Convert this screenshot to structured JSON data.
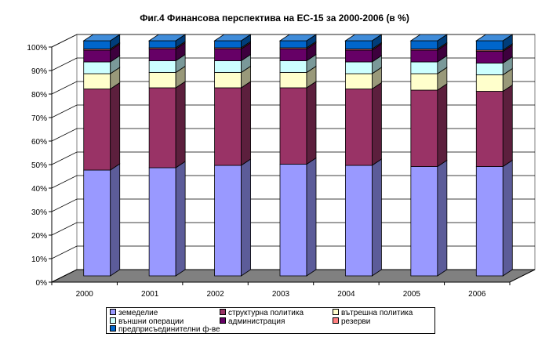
{
  "chart_data": {
    "type": "bar",
    "stacked": true,
    "percent_stacked": true,
    "style": "3d",
    "title": "Фиг.4 Финансова перспектива на ЕС-15 за 2000-2006 (в %)",
    "categories": [
      "2000",
      "2001",
      "2002",
      "2003",
      "2004",
      "2005",
      "2006"
    ],
    "y_ticks": [
      "0%",
      "10%",
      "20%",
      "30%",
      "40%",
      "50%",
      "60%",
      "70%",
      "80%",
      "90%",
      "100%"
    ],
    "ylim": [
      0,
      100
    ],
    "grid": true,
    "legend_position": "bottom",
    "series": [
      {
        "name": "земеделие",
        "color": "#9999ff",
        "values": [
          45,
          46,
          47,
          47.5,
          47,
          46.5,
          46.5
        ]
      },
      {
        "name": "структурна политика",
        "color": "#993366",
        "values": [
          34.5,
          34,
          33,
          32.5,
          32.5,
          32.5,
          32
        ]
      },
      {
        "name": "вътрешна политика",
        "color": "#ffffcc",
        "values": [
          6.5,
          6.5,
          6.5,
          6.5,
          6.5,
          7,
          7
        ]
      },
      {
        "name": "външни операции",
        "color": "#ccffff",
        "values": [
          5,
          5,
          5,
          5,
          5,
          5,
          5
        ]
      },
      {
        "name": "администрация",
        "color": "#660066",
        "values": [
          5,
          5,
          5,
          5,
          5,
          5,
          5
        ]
      },
      {
        "name": "резерви",
        "color": "#ff8080",
        "values": [
          0.5,
          0.5,
          0.5,
          0.5,
          0.5,
          0.5,
          0.5
        ]
      },
      {
        "name": "предприсъединителни ф-ве",
        "color": "#0066cc",
        "values": [
          3.5,
          3,
          3,
          3,
          3.5,
          3.5,
          4
        ]
      }
    ]
  }
}
